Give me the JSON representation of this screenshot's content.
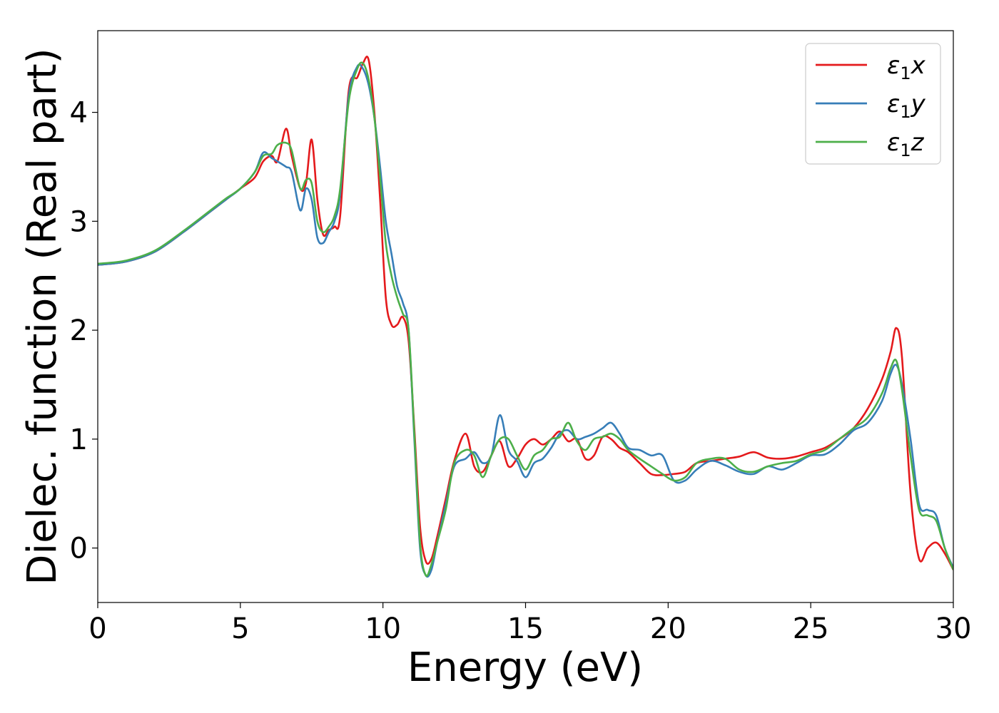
{
  "chart_data": {
    "type": "line",
    "xlabel": "Energy (eV)",
    "ylabel": "Dielec. function (Real part)",
    "xlim": [
      0,
      30
    ],
    "ylim": [
      -0.5,
      4.75
    ],
    "xticks": [
      0,
      5,
      10,
      15,
      20,
      25,
      30
    ],
    "yticks": [
      0,
      1,
      2,
      3,
      4
    ],
    "grid": false,
    "legend_position": "top-right",
    "series": [
      {
        "name": "ε₁x",
        "legend_main": "ε",
        "legend_sub": "1",
        "legend_tail": "x",
        "color": "#e41a1c",
        "x": [
          0,
          1,
          2,
          3,
          4,
          4.5,
          5,
          5.5,
          5.8,
          6.1,
          6.3,
          6.6,
          6.8,
          7.1,
          7.3,
          7.5,
          7.7,
          7.9,
          8.1,
          8.3,
          8.5,
          8.8,
          9.1,
          9.3,
          9.5,
          9.7,
          9.9,
          10.1,
          10.3,
          10.5,
          10.7,
          10.9,
          11.1,
          11.3,
          11.5,
          11.7,
          11.9,
          12.2,
          12.5,
          12.9,
          13.2,
          13.5,
          13.8,
          14.1,
          14.4,
          14.7,
          15,
          15.3,
          15.6,
          15.9,
          16.2,
          16.5,
          16.8,
          17.1,
          17.4,
          17.7,
          18,
          18.3,
          18.6,
          19,
          19.4,
          19.8,
          20.2,
          20.6,
          21,
          21.5,
          22,
          22.5,
          23,
          23.5,
          24,
          24.5,
          25,
          25.5,
          26,
          26.5,
          27,
          27.5,
          27.8,
          28,
          28.2,
          28.5,
          28.8,
          29.1,
          29.4,
          29.7,
          30
        ],
        "y": [
          2.6,
          2.63,
          2.72,
          2.9,
          3.1,
          3.2,
          3.3,
          3.4,
          3.55,
          3.6,
          3.55,
          3.85,
          3.6,
          3.3,
          3.35,
          3.75,
          3.2,
          2.88,
          2.92,
          2.95,
          3.05,
          4.2,
          4.32,
          4.45,
          4.48,
          4.0,
          3.2,
          2.3,
          2.05,
          2.05,
          2.12,
          1.9,
          1.1,
          0.2,
          -0.12,
          -0.1,
          0.1,
          0.45,
          0.8,
          1.05,
          0.75,
          0.7,
          0.85,
          0.98,
          0.75,
          0.82,
          0.95,
          1.0,
          0.95,
          1.0,
          1.07,
          0.98,
          1.0,
          0.82,
          0.85,
          1.02,
          1.0,
          0.92,
          0.88,
          0.78,
          0.68,
          0.67,
          0.68,
          0.7,
          0.78,
          0.8,
          0.82,
          0.84,
          0.88,
          0.83,
          0.82,
          0.84,
          0.88,
          0.92,
          1.0,
          1.1,
          1.28,
          1.55,
          1.8,
          2.02,
          1.75,
          0.5,
          -0.1,
          0.0,
          0.05,
          -0.05,
          -0.2
        ]
      },
      {
        "name": "ε₁y",
        "legend_main": "ε",
        "legend_sub": "1",
        "legend_tail": "y",
        "color": "#377eb8",
        "x": [
          0,
          1,
          2,
          3,
          4,
          4.5,
          5,
          5.5,
          5.8,
          6.1,
          6.3,
          6.6,
          6.8,
          7.1,
          7.3,
          7.5,
          7.7,
          7.9,
          8.1,
          8.3,
          8.5,
          8.8,
          9.1,
          9.3,
          9.5,
          9.7,
          9.9,
          10.1,
          10.3,
          10.5,
          10.7,
          10.9,
          11.1,
          11.3,
          11.5,
          11.7,
          11.9,
          12.2,
          12.5,
          12.9,
          13.2,
          13.5,
          13.8,
          14.1,
          14.4,
          14.7,
          15,
          15.3,
          15.6,
          15.9,
          16.2,
          16.5,
          16.8,
          17.1,
          17.4,
          17.7,
          18,
          18.3,
          18.6,
          19,
          19.4,
          19.8,
          20.2,
          20.6,
          21,
          21.5,
          22,
          22.5,
          23,
          23.5,
          24,
          24.5,
          25,
          25.5,
          26,
          26.5,
          27,
          27.5,
          27.8,
          28,
          28.2,
          28.5,
          28.8,
          29.1,
          29.4,
          29.7,
          30
        ],
        "y": [
          2.6,
          2.63,
          2.72,
          2.9,
          3.1,
          3.2,
          3.3,
          3.45,
          3.63,
          3.58,
          3.55,
          3.5,
          3.45,
          3.1,
          3.3,
          3.2,
          2.85,
          2.8,
          2.9,
          3.0,
          3.25,
          4.15,
          4.42,
          4.4,
          4.25,
          3.95,
          3.5,
          3.0,
          2.7,
          2.4,
          2.25,
          2.0,
          1.0,
          0.0,
          -0.25,
          -0.2,
          0.05,
          0.4,
          0.75,
          0.82,
          0.88,
          0.78,
          0.85,
          1.22,
          0.9,
          0.8,
          0.65,
          0.78,
          0.82,
          0.92,
          1.05,
          1.08,
          1.0,
          1.02,
          1.05,
          1.1,
          1.15,
          1.05,
          0.92,
          0.9,
          0.85,
          0.85,
          0.62,
          0.62,
          0.72,
          0.8,
          0.76,
          0.7,
          0.68,
          0.75,
          0.72,
          0.78,
          0.85,
          0.86,
          0.95,
          1.08,
          1.15,
          1.35,
          1.6,
          1.68,
          1.5,
          1.0,
          0.4,
          0.35,
          0.3,
          0.0,
          -0.18
        ]
      },
      {
        "name": "ε₁z",
        "legend_main": "ε",
        "legend_sub": "1",
        "legend_tail": "z",
        "color": "#4daf4a",
        "x": [
          0,
          1,
          2,
          3,
          4,
          4.5,
          5,
          5.5,
          5.8,
          6.1,
          6.3,
          6.6,
          6.8,
          7.1,
          7.3,
          7.5,
          7.7,
          7.9,
          8.1,
          8.3,
          8.5,
          8.8,
          9.1,
          9.3,
          9.5,
          9.7,
          9.9,
          10.1,
          10.3,
          10.5,
          10.7,
          10.9,
          11.1,
          11.3,
          11.5,
          11.7,
          11.9,
          12.2,
          12.5,
          12.9,
          13.2,
          13.5,
          13.8,
          14.1,
          14.4,
          14.7,
          15,
          15.3,
          15.6,
          15.9,
          16.2,
          16.5,
          16.8,
          17.1,
          17.4,
          17.7,
          18,
          18.3,
          18.6,
          19,
          19.4,
          19.8,
          20.2,
          20.6,
          21,
          21.5,
          22,
          22.5,
          23,
          23.5,
          24,
          24.5,
          25,
          25.5,
          26,
          26.5,
          27,
          27.5,
          27.8,
          28,
          28.2,
          28.5,
          28.8,
          29.1,
          29.4,
          29.7,
          30
        ],
        "y": [
          2.61,
          2.64,
          2.73,
          2.91,
          3.11,
          3.21,
          3.3,
          3.45,
          3.6,
          3.62,
          3.7,
          3.72,
          3.65,
          3.3,
          3.38,
          3.35,
          3.0,
          2.9,
          2.95,
          3.05,
          3.3,
          4.1,
          4.4,
          4.45,
          4.3,
          3.95,
          3.4,
          2.8,
          2.5,
          2.3,
          2.15,
          2.0,
          1.05,
          0.05,
          -0.25,
          -0.15,
          0.05,
          0.35,
          0.78,
          0.9,
          0.85,
          0.65,
          0.85,
          1.0,
          1.0,
          0.85,
          0.72,
          0.85,
          0.9,
          1.0,
          1.02,
          1.15,
          0.98,
          0.9,
          1.0,
          1.02,
          1.05,
          1.0,
          0.9,
          0.82,
          0.75,
          0.68,
          0.62,
          0.65,
          0.78,
          0.82,
          0.82,
          0.72,
          0.7,
          0.75,
          0.78,
          0.8,
          0.86,
          0.9,
          1.0,
          1.1,
          1.2,
          1.42,
          1.65,
          1.72,
          1.45,
          0.85,
          0.35,
          0.3,
          0.25,
          0.0,
          -0.2
        ]
      }
    ]
  }
}
